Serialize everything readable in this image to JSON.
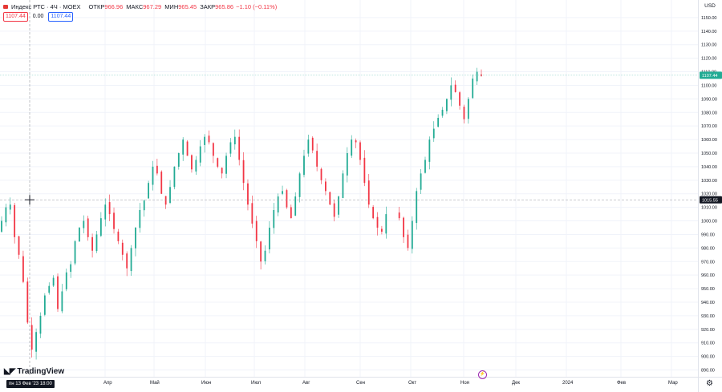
{
  "legend": {
    "title": "Индекс РТС · 4Ч · MOEX",
    "open_label": "ОТКР",
    "open": "966.96",
    "high_label": "МАКС",
    "high": "967.29",
    "low_label": "МИН",
    "low": "965.45",
    "close_label": "ЗАКР",
    "close": "965.86",
    "change": "−1.10 (−0.11%)"
  },
  "badges": {
    "bid": "1107.44",
    "spread": "0.00",
    "ask": "1107.44"
  },
  "currency": "USD",
  "price_axis": {
    "ticks": [
      "1150.00",
      "1140.00",
      "1130.00",
      "1120.00",
      "1110.00",
      "1100.00",
      "1090.00",
      "1080.00",
      "1070.00",
      "1060.00",
      "1050.00",
      "1040.00",
      "1030.00",
      "1020.00",
      "1010.00",
      "1000.00",
      "990.00",
      "980.00",
      "970.00",
      "960.00",
      "950.00",
      "940.00",
      "930.00",
      "920.00",
      "910.00",
      "900.00",
      "890.00"
    ],
    "last_price": "1107.44",
    "crosshair_price": "1015.55"
  },
  "time_axis": {
    "crosshair_label": "пн 13 Фев '23   18:00",
    "labels": [
      "Апр",
      "Май",
      "Июн",
      "Июл",
      "Авг",
      "Сен",
      "Окт",
      "Ноя",
      "Дек",
      "2024",
      "Фев",
      "Мар"
    ]
  },
  "logo": "TradingView",
  "colors": {
    "up": "#22ab94",
    "down": "#f23645",
    "last_price_bg": "#22ab94",
    "crosshair_bg": "#131722"
  },
  "chart_data": {
    "type": "candlestick",
    "ylim": [
      885,
      1160
    ],
    "closes": [
      1000,
      1010,
      1012,
      988,
      975,
      955,
      925,
      905,
      918,
      930,
      945,
      952,
      958,
      935,
      948,
      962,
      968,
      985,
      995,
      1000,
      988,
      978,
      990,
      1002,
      1012,
      1005,
      994,
      985,
      975,
      965,
      980,
      995,
      1008,
      1015,
      1028,
      1040,
      1035,
      1020,
      1012,
      1025,
      1040,
      1050,
      1060,
      1048,
      1038,
      1045,
      1055,
      1062,
      1058,
      1048,
      1040,
      1035,
      1048,
      1058,
      1062,
      1045,
      1028,
      1012,
      998,
      985,
      970,
      978,
      995,
      1008,
      1018,
      1022,
      1010,
      1002,
      1018,
      1035,
      1048,
      1060,
      1052,
      1040,
      1030,
      1022,
      1012,
      1003,
      1018,
      1035,
      1050,
      1060,
      1058,
      1045,
      1028,
      1012,
      1002,
      995,
      992,
      1005,
      1002,
      988,
      980,
      1000,
      1022,
      1035,
      1045,
      1060,
      1068,
      1076,
      1082,
      1090,
      1100,
      1095,
      1085,
      1075,
      1090,
      1105,
      1110,
      1107
    ]
  }
}
